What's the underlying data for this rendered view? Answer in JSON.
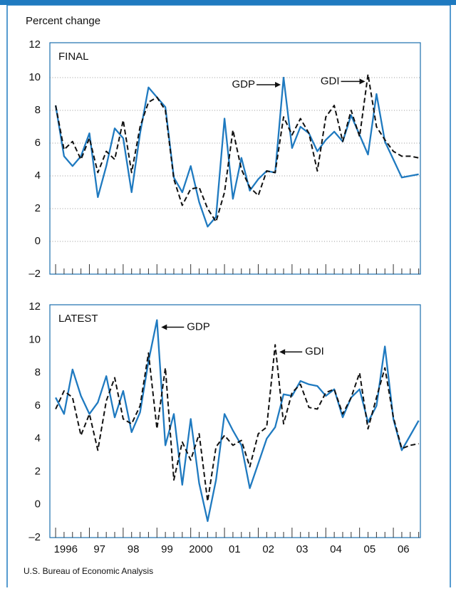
{
  "y_axis_label": "Percent change",
  "source": "U.S. Bureau of Economic Analysis",
  "chart_data": [
    {
      "type": "line",
      "title": "FINAL",
      "x": [
        1996,
        1996.25,
        1996.5,
        1996.75,
        1997,
        1997.25,
        1997.5,
        1997.75,
        1998,
        1998.25,
        1998.5,
        1998.75,
        1999,
        1999.25,
        1999.5,
        1999.75,
        2000,
        2000.25,
        2000.5,
        2000.75,
        2001,
        2001.25,
        2001.5,
        2001.75,
        2002,
        2002.25,
        2002.5,
        2002.75,
        2003,
        2003.25,
        2003.5,
        2003.75,
        2004,
        2004.25,
        2004.5,
        2004.75,
        2005,
        2005.25,
        2005.5,
        2005.75,
        2006,
        2006.25,
        2006.5,
        2006.75
      ],
      "xlim": [
        1995.83,
        2006.8
      ],
      "ylim": [
        -2,
        12
      ],
      "yticks": [
        {
          "value": -2,
          "label": "–2"
        },
        0,
        2,
        4,
        6,
        8,
        10,
        12
      ],
      "grid": true,
      "series": [
        {
          "name": "GDP",
          "color": "#1f7ac0",
          "values": [
            8.3,
            5.2,
            4.6,
            5.2,
            6.6,
            2.7,
            4.6,
            6.9,
            6.3,
            3.0,
            6.6,
            9.4,
            8.8,
            8.2,
            3.9,
            3.0,
            4.6,
            2.4,
            0.9,
            1.5,
            7.5,
            2.6,
            5.1,
            3.1,
            3.8,
            4.3,
            4.2,
            10.0,
            5.7,
            7.0,
            6.6,
            5.5,
            6.2,
            6.7,
            6.1,
            7.7,
            6.5,
            5.3,
            9.0,
            6.1,
            5.0,
            3.9,
            4.0,
            4.1
          ]
        },
        {
          "name": "GDI",
          "color": "#111111",
          "dashed": true,
          "values": [
            8.3,
            5.6,
            6.1,
            5.0,
            6.3,
            4.2,
            5.5,
            5.0,
            7.4,
            4.2,
            7.0,
            8.5,
            8.8,
            8.0,
            3.8,
            2.2,
            3.2,
            3.3,
            2.0,
            1.2,
            3.0,
            6.8,
            4.4,
            3.3,
            2.8,
            4.3,
            4.2,
            7.6,
            6.5,
            7.5,
            6.6,
            4.3,
            7.6,
            8.3,
            6.1,
            8.0,
            6.4,
            10.2,
            7.0,
            6.2,
            5.5,
            5.2,
            5.2,
            5.1
          ]
        }
      ],
      "annotations": [
        "GDP",
        "GDI"
      ]
    },
    {
      "type": "line",
      "title": "LATEST",
      "x": [
        1996,
        1996.25,
        1996.5,
        1996.75,
        1997,
        1997.25,
        1997.5,
        1997.75,
        1998,
        1998.25,
        1998.5,
        1998.75,
        1999,
        1999.25,
        1999.5,
        1999.75,
        2000,
        2000.25,
        2000.5,
        2000.75,
        2001,
        2001.25,
        2001.5,
        2001.75,
        2002,
        2002.25,
        2002.5,
        2002.75,
        2003,
        2003.25,
        2003.5,
        2003.75,
        2004,
        2004.25,
        2004.5,
        2004.75,
        2005,
        2005.25,
        2005.5,
        2005.75,
        2006,
        2006.25,
        2006.5,
        2006.75
      ],
      "xlim": [
        1995.83,
        2006.8
      ],
      "xticks": [
        {
          "value": 1996.3,
          "label": "1996"
        },
        {
          "value": 1997.3,
          "label": "97"
        },
        {
          "value": 1998.3,
          "label": "98"
        },
        {
          "value": 1999.3,
          "label": "99"
        },
        {
          "value": 2000.3,
          "label": "2000"
        },
        {
          "value": 2001.3,
          "label": "01"
        },
        {
          "value": 2002.3,
          "label": "02"
        },
        {
          "value": 2003.3,
          "label": "03"
        },
        {
          "value": 2004.3,
          "label": "04"
        },
        {
          "value": 2005.3,
          "label": "05"
        },
        {
          "value": 2006.3,
          "label": "06"
        }
      ],
      "ylim": [
        -2,
        12
      ],
      "yticks": [
        {
          "value": -2,
          "label": "–2"
        },
        0,
        2,
        4,
        6,
        8,
        10,
        12
      ],
      "grid": false,
      "series": [
        {
          "name": "GDP",
          "color": "#1f7ac0",
          "values": [
            6.5,
            5.5,
            8.2,
            6.6,
            5.5,
            6.2,
            7.8,
            5.3,
            6.9,
            4.4,
            5.6,
            8.7,
            11.2,
            3.6,
            5.5,
            1.2,
            5.2,
            1.3,
            -1.0,
            1.5,
            5.5,
            4.5,
            3.6,
            1.0,
            2.5,
            4.0,
            4.7,
            6.7,
            6.6,
            7.5,
            7.3,
            7.2,
            6.6,
            7.0,
            5.3,
            6.5,
            7.0,
            5.0,
            6.0,
            9.6,
            5.2,
            3.3,
            4.2,
            5.1
          ]
        },
        {
          "name": "GDI",
          "color": "#111111",
          "dashed": true,
          "values": [
            5.8,
            6.9,
            6.5,
            4.2,
            5.5,
            3.3,
            6.3,
            7.7,
            5.2,
            4.9,
            6.0,
            9.2,
            4.6,
            8.3,
            1.5,
            3.8,
            2.7,
            4.3,
            0.2,
            3.5,
            4.2,
            3.6,
            3.9,
            2.3,
            4.3,
            4.7,
            9.7,
            4.9,
            6.8,
            7.3,
            5.9,
            5.8,
            6.8,
            7.0,
            5.5,
            6.5,
            8.0,
            4.6,
            6.5,
            8.3,
            5.3,
            3.4,
            3.6,
            3.7
          ]
        }
      ],
      "annotations": [
        "GDP",
        "GDI"
      ]
    }
  ]
}
